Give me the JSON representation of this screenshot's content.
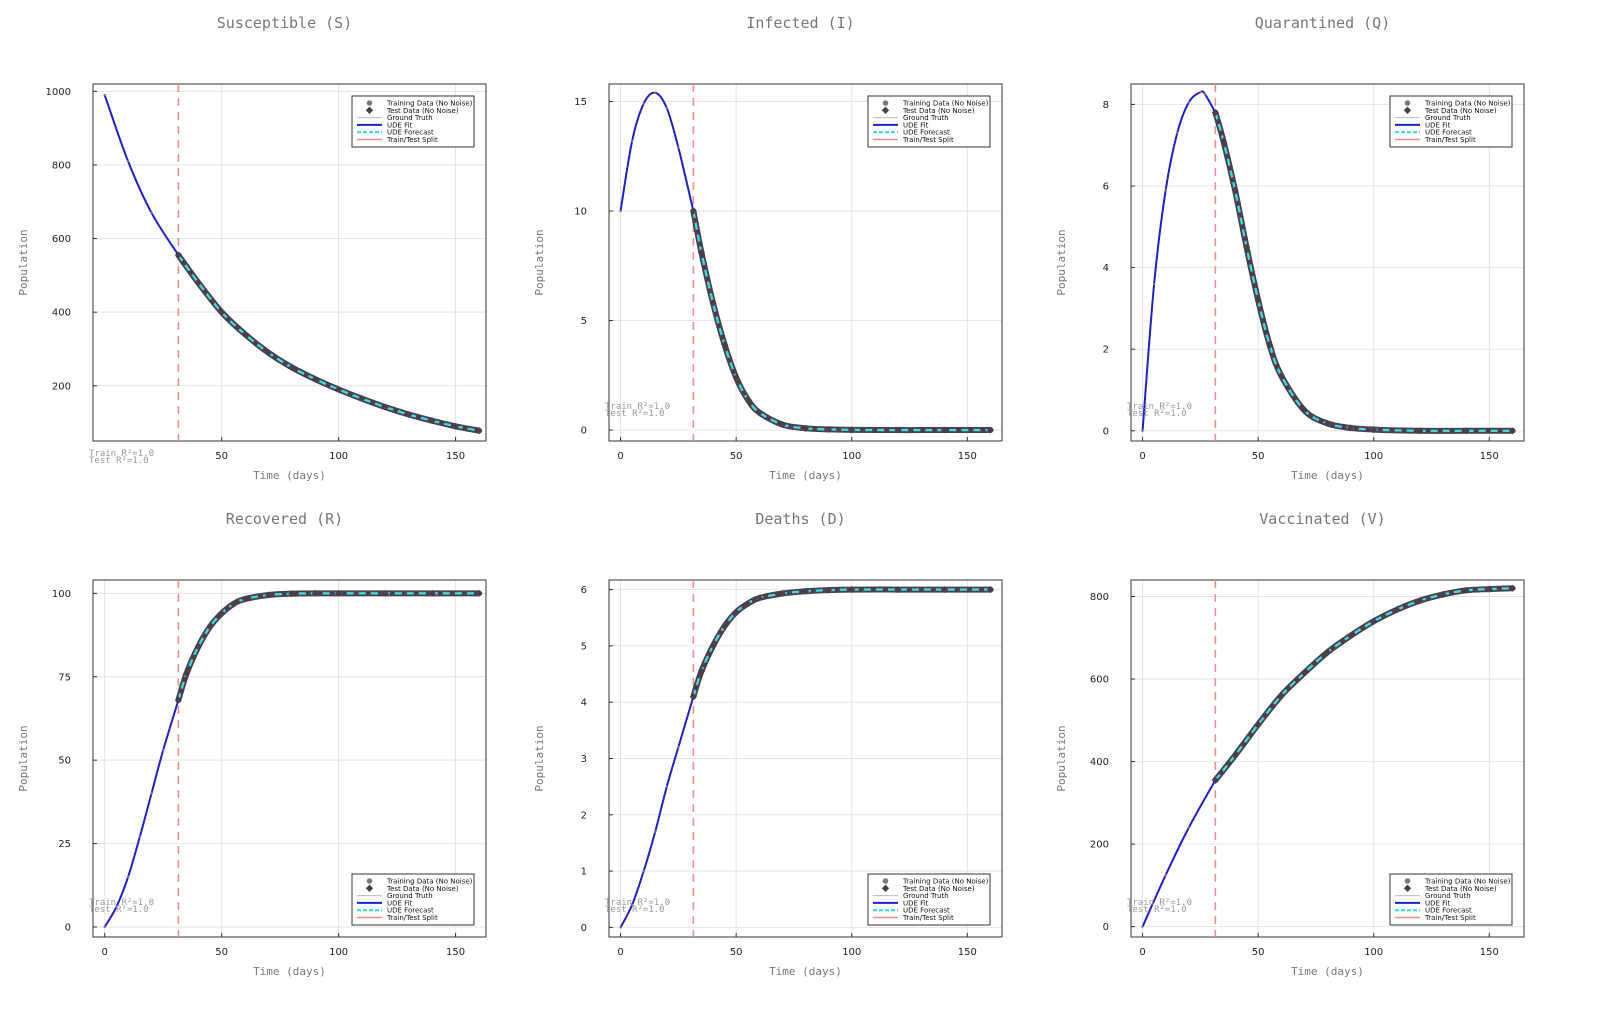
{
  "figure": {
    "xlabel": "Time (days)",
    "ylabel": "Population",
    "legend": [
      "Training Data (No Noise)",
      "Test Data (No Noise)",
      "Ground Truth",
      "UDE Fit",
      "UDE Forecast",
      "Train/Test Split"
    ],
    "colors": {
      "training_data": "#7a7a7a",
      "test_data": "#4a3f4a",
      "ground_truth": "#bbbbbb",
      "ude_fit": "#1f1fd0",
      "ude_forecast": "#3fd7e0",
      "train_test_split": "#e8908c"
    }
  },
  "chart_data": [
    {
      "type": "line",
      "title": "Susceptible (S)",
      "xlabel": "Time (days)",
      "ylabel": "Population",
      "xlim": [
        -5,
        163
      ],
      "ylim": [
        50,
        1020
      ],
      "xticks": [
        50,
        100,
        150
      ],
      "yticks": [
        200,
        400,
        600,
        800,
        1000
      ],
      "split_x": 31.5,
      "legend_position": "top-right",
      "annotation": [
        "Train R²=1.0",
        "Test R²=1.0"
      ],
      "x": [
        0,
        10,
        20,
        31.5,
        40,
        50,
        60,
        70,
        80,
        90,
        100,
        110,
        120,
        130,
        140,
        150,
        160
      ],
      "y": [
        990,
        810,
        670,
        555,
        480,
        400,
        340,
        290,
        250,
        218,
        190,
        165,
        142,
        122,
        105,
        90,
        78
      ],
      "grid": true
    },
    {
      "type": "line",
      "title": "Infected (I)",
      "xlabel": "Time (days)",
      "ylabel": "Population",
      "xlim": [
        -5,
        165
      ],
      "ylim": [
        -0.5,
        15.8
      ],
      "xticks": [
        0,
        50,
        100,
        150
      ],
      "yticks": [
        0,
        5,
        10,
        15
      ],
      "split_x": 31.5,
      "legend_position": "top-right",
      "annotation": [
        "Train R²=1.0",
        "Test R²=1.0"
      ],
      "x": [
        0,
        5,
        10,
        15,
        20,
        25,
        31.5,
        35,
        40,
        45,
        50,
        55,
        60,
        70,
        80,
        90,
        100,
        120,
        140,
        160
      ],
      "y": [
        10,
        13.2,
        14.9,
        15.4,
        14.7,
        12.9,
        10,
        8.1,
        5.8,
        3.9,
        2.4,
        1.4,
        0.8,
        0.25,
        0.08,
        0.03,
        0.01,
        0,
        0,
        0
      ],
      "grid": true
    },
    {
      "type": "line",
      "title": "Quarantined (Q)",
      "xlabel": "Time (days)",
      "ylabel": "Population",
      "xlim": [
        -5,
        165
      ],
      "ylim": [
        -0.25,
        8.5
      ],
      "xticks": [
        0,
        50,
        100,
        150
      ],
      "yticks": [
        0,
        2,
        4,
        6,
        8
      ],
      "split_x": 31.5,
      "legend_position": "top-right",
      "annotation": [
        "Train R²=1.0",
        "Test R²=1.0"
      ],
      "x": [
        0,
        5,
        10,
        15,
        20,
        25,
        27,
        31.5,
        35,
        40,
        45,
        50,
        55,
        60,
        70,
        80,
        90,
        100,
        120,
        140,
        160
      ],
      "y": [
        0,
        3.6,
        5.9,
        7.3,
        8.05,
        8.3,
        8.25,
        7.8,
        7.1,
        5.9,
        4.5,
        3.2,
        2.1,
        1.35,
        0.5,
        0.18,
        0.07,
        0.03,
        0,
        0,
        0
      ],
      "grid": true
    },
    {
      "type": "line",
      "title": "Recovered (R)",
      "xlabel": "Time (days)",
      "ylabel": "Population",
      "xlim": [
        -5,
        163
      ],
      "ylim": [
        -3,
        104
      ],
      "xticks": [
        0,
        50,
        100,
        150
      ],
      "yticks": [
        0,
        25,
        50,
        75,
        100
      ],
      "split_x": 31.5,
      "legend_position": "bottom-right",
      "annotation": [
        "Train R²=1.0",
        "Test R²=1.0"
      ],
      "x": [
        0,
        5,
        10,
        15,
        20,
        25,
        31.5,
        35,
        40,
        45,
        50,
        55,
        60,
        70,
        80,
        90,
        100,
        120,
        140,
        160
      ],
      "y": [
        0,
        6,
        15,
        27,
        40,
        53,
        68,
        76,
        84,
        90,
        94,
        96.8,
        98.3,
        99.5,
        99.9,
        100,
        100,
        100,
        100,
        100
      ],
      "grid": true
    },
    {
      "type": "line",
      "title": "Deaths (D)",
      "xlabel": "Time (days)",
      "ylabel": "Population",
      "xlim": [
        -5,
        165
      ],
      "ylim": [
        -0.17,
        6.17
      ],
      "xticks": [
        0,
        50,
        100,
        150
      ],
      "yticks": [
        0,
        1,
        2,
        3,
        4,
        5,
        6
      ],
      "split_x": 31.5,
      "legend_position": "bottom-right",
      "annotation": [
        "Train R²=1.0",
        "Test R²=1.0"
      ],
      "x": [
        0,
        5,
        10,
        15,
        20,
        25,
        31.5,
        35,
        40,
        45,
        50,
        55,
        60,
        70,
        80,
        90,
        100,
        120,
        140,
        160
      ],
      "y": [
        0,
        0.4,
        1.0,
        1.7,
        2.5,
        3.2,
        4.1,
        4.55,
        5.0,
        5.35,
        5.6,
        5.75,
        5.85,
        5.93,
        5.97,
        5.99,
        6.0,
        6.0,
        6.0,
        6.0
      ],
      "grid": true
    },
    {
      "type": "line",
      "title": "Vaccinated (V)",
      "xlabel": "Time (days)",
      "ylabel": "Population",
      "xlim": [
        -5,
        165
      ],
      "ylim": [
        -25,
        840
      ],
      "xticks": [
        0,
        50,
        100,
        150
      ],
      "yticks": [
        0,
        200,
        400,
        600,
        800
      ],
      "split_x": 31.5,
      "legend_position": "bottom-right",
      "annotation": [
        "Train R²=1.0",
        "Test R²=1.0"
      ],
      "x": [
        0,
        10,
        20,
        31.5,
        40,
        50,
        60,
        70,
        80,
        90,
        100,
        110,
        120,
        130,
        140,
        150,
        160
      ],
      "y": [
        0,
        125,
        240,
        355,
        415,
        490,
        560,
        615,
        665,
        705,
        740,
        768,
        790,
        805,
        815,
        818,
        820
      ],
      "grid": true
    }
  ]
}
